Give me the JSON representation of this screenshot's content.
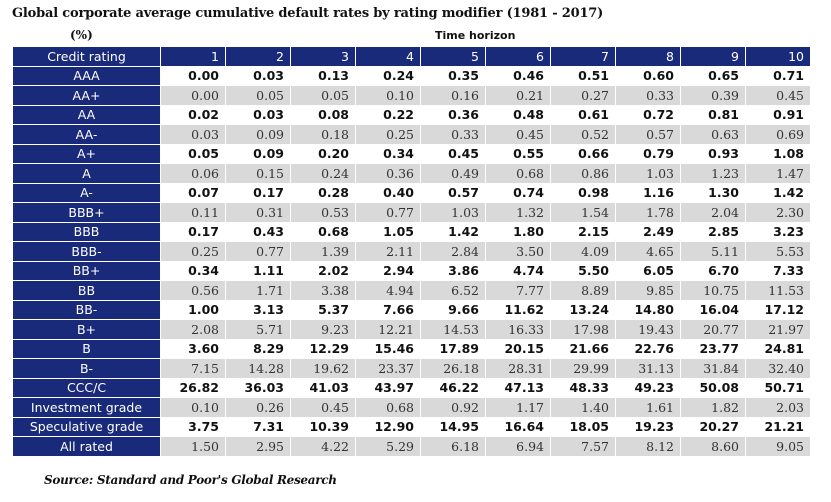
{
  "title": "Global corporate average cumulative default rates by rating modifier (1981 - 2017)",
  "units": "(%)",
  "time_horizon_label": "Time horizon",
  "header": {
    "row_label": "Credit rating",
    "columns": [
      "1",
      "2",
      "3",
      "4",
      "5",
      "6",
      "7",
      "8",
      "9",
      "10"
    ]
  },
  "rows": [
    {
      "rating": "AAA",
      "values": [
        "0.00",
        "0.03",
        "0.13",
        "0.24",
        "0.35",
        "0.46",
        "0.51",
        "0.60",
        "0.65",
        "0.71"
      ]
    },
    {
      "rating": "AA+",
      "values": [
        "0.00",
        "0.05",
        "0.05",
        "0.10",
        "0.16",
        "0.21",
        "0.27",
        "0.33",
        "0.39",
        "0.45"
      ]
    },
    {
      "rating": "AA",
      "values": [
        "0.02",
        "0.03",
        "0.08",
        "0.22",
        "0.36",
        "0.48",
        "0.61",
        "0.72",
        "0.81",
        "0.91"
      ]
    },
    {
      "rating": "AA-",
      "values": [
        "0.03",
        "0.09",
        "0.18",
        "0.25",
        "0.33",
        "0.45",
        "0.52",
        "0.57",
        "0.63",
        "0.69"
      ]
    },
    {
      "rating": "A+",
      "values": [
        "0.05",
        "0.09",
        "0.20",
        "0.34",
        "0.45",
        "0.55",
        "0.66",
        "0.79",
        "0.93",
        "1.08"
      ]
    },
    {
      "rating": "A",
      "values": [
        "0.06",
        "0.15",
        "0.24",
        "0.36",
        "0.49",
        "0.68",
        "0.86",
        "1.03",
        "1.23",
        "1.47"
      ]
    },
    {
      "rating": "A-",
      "values": [
        "0.07",
        "0.17",
        "0.28",
        "0.40",
        "0.57",
        "0.74",
        "0.98",
        "1.16",
        "1.30",
        "1.42"
      ]
    },
    {
      "rating": "BBB+",
      "values": [
        "0.11",
        "0.31",
        "0.53",
        "0.77",
        "1.03",
        "1.32",
        "1.54",
        "1.78",
        "2.04",
        "2.30"
      ]
    },
    {
      "rating": "BBB",
      "values": [
        "0.17",
        "0.43",
        "0.68",
        "1.05",
        "1.42",
        "1.80",
        "2.15",
        "2.49",
        "2.85",
        "3.23"
      ]
    },
    {
      "rating": "BBB-",
      "values": [
        "0.25",
        "0.77",
        "1.39",
        "2.11",
        "2.84",
        "3.50",
        "4.09",
        "4.65",
        "5.11",
        "5.53"
      ]
    },
    {
      "rating": "BB+",
      "values": [
        "0.34",
        "1.11",
        "2.02",
        "2.94",
        "3.86",
        "4.74",
        "5.50",
        "6.05",
        "6.70",
        "7.33"
      ]
    },
    {
      "rating": "BB",
      "values": [
        "0.56",
        "1.71",
        "3.38",
        "4.94",
        "6.52",
        "7.77",
        "8.89",
        "9.85",
        "10.75",
        "11.53"
      ]
    },
    {
      "rating": "BB-",
      "values": [
        "1.00",
        "3.13",
        "5.37",
        "7.66",
        "9.66",
        "11.62",
        "13.24",
        "14.80",
        "16.04",
        "17.12"
      ]
    },
    {
      "rating": "B+",
      "values": [
        "2.08",
        "5.71",
        "9.23",
        "12.21",
        "14.53",
        "16.33",
        "17.98",
        "19.43",
        "20.77",
        "21.97"
      ]
    },
    {
      "rating": "B",
      "values": [
        "3.60",
        "8.29",
        "12.29",
        "15.46",
        "17.89",
        "20.15",
        "21.66",
        "22.76",
        "23.77",
        "24.81"
      ]
    },
    {
      "rating": "B-",
      "values": [
        "7.15",
        "14.28",
        "19.62",
        "23.37",
        "26.18",
        "28.31",
        "29.99",
        "31.13",
        "31.84",
        "32.40"
      ]
    },
    {
      "rating": "CCC/C",
      "values": [
        "26.82",
        "36.03",
        "41.03",
        "43.97",
        "46.22",
        "47.13",
        "48.33",
        "49.23",
        "50.08",
        "50.71"
      ]
    },
    {
      "rating": "Investment grade",
      "values": [
        "0.10",
        "0.26",
        "0.45",
        "0.68",
        "0.92",
        "1.17",
        "1.40",
        "1.61",
        "1.82",
        "2.03"
      ]
    },
    {
      "rating": "Speculative grade",
      "values": [
        "3.75",
        "7.31",
        "10.39",
        "12.90",
        "14.95",
        "16.64",
        "18.05",
        "19.23",
        "20.27",
        "21.21"
      ]
    },
    {
      "rating": "All rated",
      "values": [
        "1.50",
        "2.95",
        "4.22",
        "5.29",
        "6.18",
        "6.94",
        "7.57",
        "8.12",
        "8.60",
        "9.05"
      ]
    }
  ],
  "source": "Source: Standard and Poor's Global Research"
}
